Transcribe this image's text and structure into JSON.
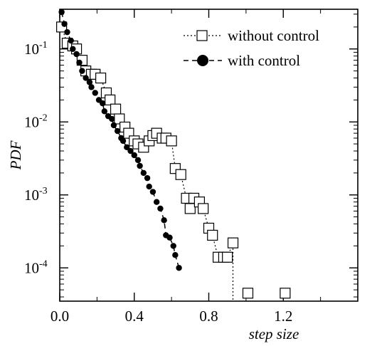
{
  "chart_data": {
    "type": "scatter",
    "xlabel": "step size",
    "ylabel": "PDF",
    "xlim": [
      0.0,
      1.6
    ],
    "ylim": [
      3.5e-05,
      0.35
    ],
    "yscale": "log",
    "legend_position": "top-right",
    "grid": false,
    "x_ticks": [
      {
        "value": 0.0,
        "label": "0.0"
      },
      {
        "value": 0.4,
        "label": "0.4"
      },
      {
        "value": 0.8,
        "label": "0.8"
      },
      {
        "value": 1.2,
        "label": "1.2"
      }
    ],
    "y_ticks": [
      {
        "value": 0.1,
        "mantissa": "10",
        "exponent": "-1"
      },
      {
        "value": 0.01,
        "mantissa": "10",
        "exponent": "-2"
      },
      {
        "value": 0.001,
        "mantissa": "10",
        "exponent": "-3"
      },
      {
        "value": 0.0001,
        "mantissa": "10",
        "exponent": "-4"
      }
    ],
    "series": [
      {
        "name": "without control",
        "marker": "square",
        "line_style": "dotted",
        "color": "#000000",
        "x": [
          0.01,
          0.04,
          0.07,
          0.09,
          0.12,
          0.14,
          0.17,
          0.19,
          0.22,
          0.25,
          0.27,
          0.3,
          0.32,
          0.35,
          0.37,
          0.4,
          0.42,
          0.45,
          0.48,
          0.5,
          0.52,
          0.55,
          0.57,
          0.6,
          0.62,
          0.65,
          0.68,
          0.7,
          0.72,
          0.75,
          0.77,
          0.8,
          0.82,
          0.85,
          0.88,
          0.9,
          0.93,
          1.01,
          1.21
        ],
        "y": [
          0.2,
          0.12,
          0.11,
          0.1,
          0.07,
          0.05,
          0.045,
          0.045,
          0.04,
          0.025,
          0.02,
          0.015,
          0.011,
          0.0085,
          0.007,
          0.0055,
          0.005,
          0.0045,
          0.0055,
          0.0065,
          0.007,
          0.006,
          0.006,
          0.0055,
          0.0023,
          0.0019,
          0.0009,
          0.00065,
          0.0009,
          0.0008,
          0.00065,
          0.00035,
          0.00028,
          0.00014,
          0.00014,
          0.00014,
          0.00022,
          4.5e-05,
          4.5e-05
        ]
      },
      {
        "name": "with control",
        "marker": "circle",
        "line_style": "dashed",
        "color": "#000000",
        "x": [
          0.01,
          0.025,
          0.04,
          0.06,
          0.07,
          0.09,
          0.105,
          0.12,
          0.14,
          0.16,
          0.17,
          0.19,
          0.21,
          0.23,
          0.24,
          0.26,
          0.28,
          0.29,
          0.31,
          0.33,
          0.34,
          0.36,
          0.38,
          0.4,
          0.42,
          0.43,
          0.45,
          0.47,
          0.48,
          0.5,
          0.52,
          0.54,
          0.56,
          0.57,
          0.59,
          0.61,
          0.62,
          0.64
        ],
        "y": [
          0.32,
          0.22,
          0.17,
          0.13,
          0.1,
          0.085,
          0.065,
          0.05,
          0.04,
          0.035,
          0.03,
          0.025,
          0.02,
          0.018,
          0.014,
          0.012,
          0.011,
          0.009,
          0.0075,
          0.006,
          0.0055,
          0.0045,
          0.004,
          0.0035,
          0.003,
          0.0025,
          0.002,
          0.0017,
          0.0013,
          0.0011,
          0.0008,
          0.00065,
          0.00045,
          0.00028,
          0.00026,
          0.0002,
          0.00015,
          0.0001
        ]
      }
    ]
  }
}
